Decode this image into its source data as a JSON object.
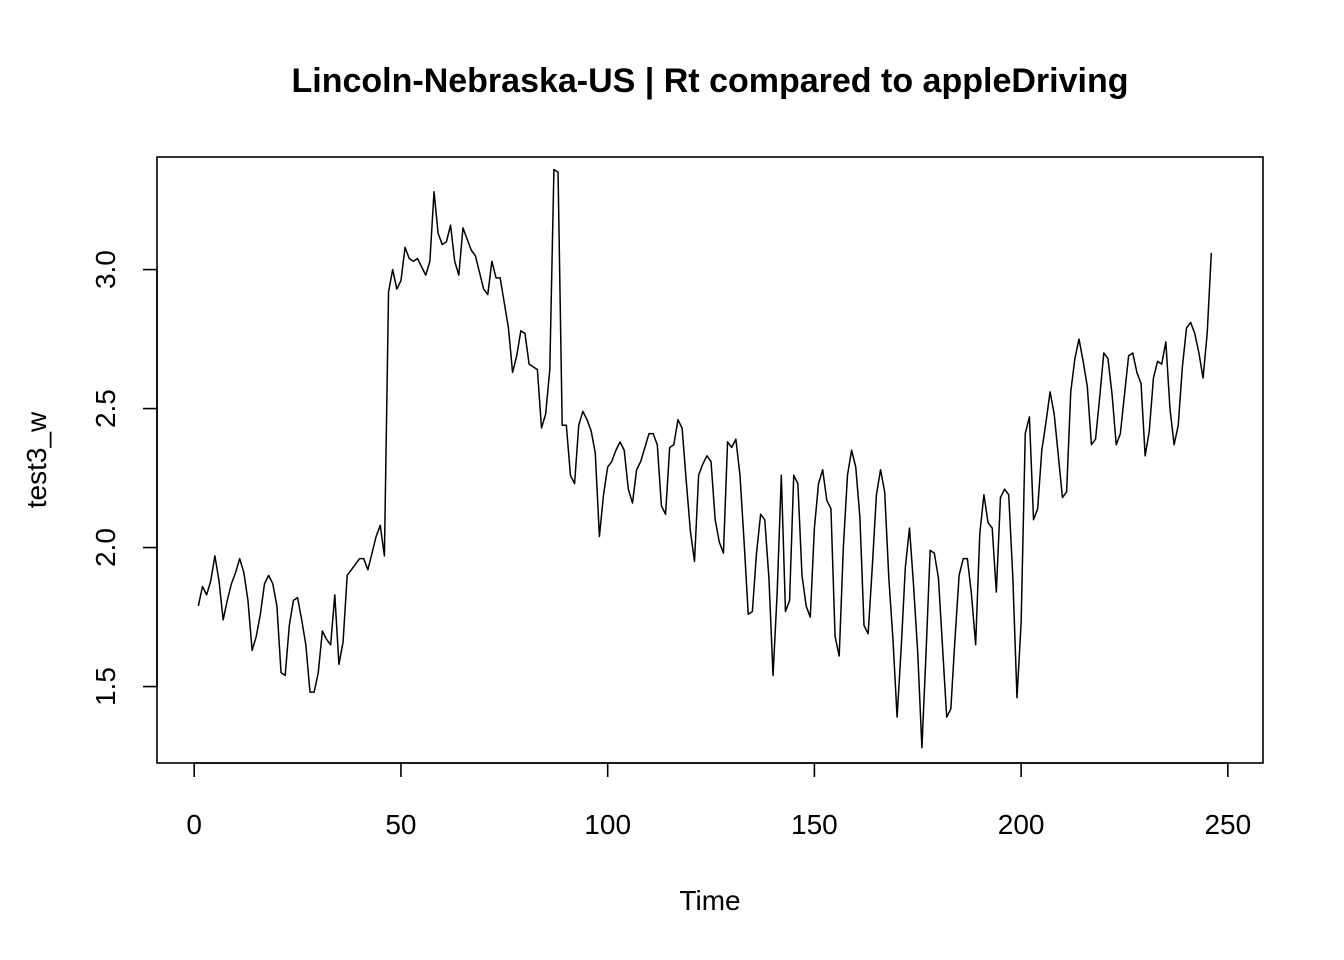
{
  "chart_data": {
    "type": "line",
    "title": "Lincoln-Nebraska-US | Rt compared to appleDriving",
    "xlabel": "Time",
    "ylabel": "test3_w",
    "xlim": [
      -9,
      258.5
    ],
    "ylim": [
      1.225,
      3.405
    ],
    "x_ticks": [
      0,
      50,
      100,
      150,
      200,
      250
    ],
    "x_tick_labels": [
      "0",
      "50",
      "100",
      "150",
      "200",
      "250"
    ],
    "y_ticks": [
      1.5,
      2.0,
      2.5,
      3.0
    ],
    "y_tick_labels": [
      "1.5",
      "2.0",
      "2.5",
      "3.0"
    ],
    "grid": false,
    "legend": "none",
    "series": [
      {
        "x_start": 1,
        "x_step": 1,
        "values": [
          1.79,
          1.86,
          1.83,
          1.88,
          1.97,
          1.88,
          1.74,
          1.81,
          1.87,
          1.91,
          1.96,
          1.91,
          1.81,
          1.63,
          1.68,
          1.76,
          1.87,
          1.9,
          1.87,
          1.79,
          1.55,
          1.54,
          1.72,
          1.81,
          1.82,
          1.74,
          1.65,
          1.48,
          1.48,
          1.55,
          1.7,
          1.67,
          1.65,
          1.83,
          1.58,
          1.66,
          1.9,
          1.92,
          1.94,
          1.96,
          1.96,
          1.92,
          1.98,
          2.04,
          2.08,
          1.97,
          2.92,
          3.0,
          2.93,
          2.96,
          3.08,
          3.04,
          3.03,
          3.04,
          3.01,
          2.98,
          3.03,
          3.28,
          3.13,
          3.09,
          3.1,
          3.16,
          3.03,
          2.98,
          3.15,
          3.11,
          3.07,
          3.05,
          2.99,
          2.93,
          2.91,
          3.03,
          2.97,
          2.97,
          2.88,
          2.79,
          2.63,
          2.69,
          2.78,
          2.77,
          2.66,
          2.65,
          2.64,
          2.43,
          2.48,
          2.64,
          3.36,
          3.35,
          2.44,
          2.44,
          2.26,
          2.23,
          2.44,
          2.49,
          2.46,
          2.42,
          2.34,
          2.04,
          2.19,
          2.29,
          2.31,
          2.35,
          2.38,
          2.35,
          2.21,
          2.16,
          2.28,
          2.31,
          2.36,
          2.41,
          2.41,
          2.37,
          2.15,
          2.12,
          2.36,
          2.37,
          2.46,
          2.43,
          2.24,
          2.06,
          1.95,
          2.26,
          2.3,
          2.33,
          2.31,
          2.1,
          2.02,
          1.98,
          2.38,
          2.36,
          2.39,
          2.26,
          2.02,
          1.76,
          1.77,
          1.98,
          2.12,
          2.1,
          1.89,
          1.54,
          1.84,
          2.26,
          1.77,
          1.81,
          2.26,
          2.23,
          1.9,
          1.79,
          1.75,
          2.07,
          2.23,
          2.28,
          2.17,
          2.14,
          1.68,
          1.61,
          2.0,
          2.26,
          2.35,
          2.29,
          2.11,
          1.72,
          1.69,
          1.93,
          2.19,
          2.28,
          2.2,
          1.89,
          1.67,
          1.39,
          1.64,
          1.93,
          2.07,
          1.86,
          1.62,
          1.28,
          1.62,
          1.99,
          1.98,
          1.89,
          1.64,
          1.39,
          1.42,
          1.67,
          1.9,
          1.96,
          1.96,
          1.83,
          1.65,
          2.05,
          2.19,
          2.09,
          2.07,
          1.84,
          2.18,
          2.21,
          2.19,
          1.89,
          1.46,
          1.73,
          2.41,
          2.47,
          2.1,
          2.14,
          2.35,
          2.45,
          2.56,
          2.48,
          2.33,
          2.18,
          2.2,
          2.56,
          2.68,
          2.75,
          2.67,
          2.58,
          2.37,
          2.39,
          2.54,
          2.7,
          2.68,
          2.55,
          2.37,
          2.41,
          2.55,
          2.69,
          2.7,
          2.63,
          2.59,
          2.33,
          2.42,
          2.61,
          2.67,
          2.66,
          2.74,
          2.5,
          2.37,
          2.44,
          2.65,
          2.79,
          2.81,
          2.77,
          2.7,
          2.61,
          2.77,
          3.06
        ]
      }
    ]
  }
}
